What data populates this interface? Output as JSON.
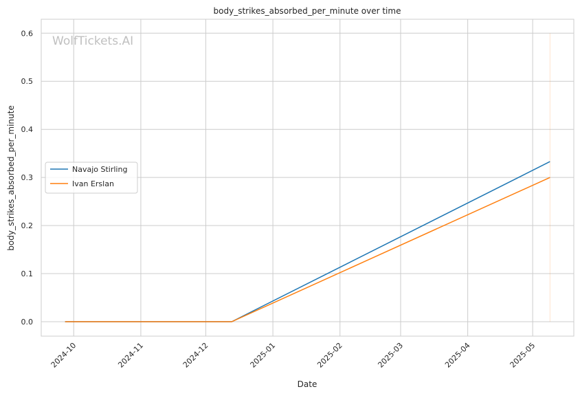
{
  "watermark": "WolfTickets.AI",
  "chart_data": {
    "type": "line",
    "title": "body_strikes_absorbed_per_minute over time",
    "xlabel": "Date",
    "ylabel": "body_strikes_absorbed_per_minute",
    "xlim": [
      "2024-09-16",
      "2025-05-20"
    ],
    "ylim": [
      -0.03,
      0.629
    ],
    "x_ticks": [
      "2024-10",
      "2024-11",
      "2024-12",
      "2025-01",
      "2025-02",
      "2025-03",
      "2025-04",
      "2025-05"
    ],
    "y_ticks": [
      0.0,
      0.1,
      0.2,
      0.3,
      0.4,
      0.5,
      0.6
    ],
    "grid": true,
    "legend_position": "center-left",
    "series": [
      {
        "name": "Navajo Stirling",
        "color": "#1f77b4",
        "points": [
          [
            "2024-09-27",
            0.0
          ],
          [
            "2024-12-13",
            0.0
          ],
          [
            "2025-05-09",
            0.333
          ]
        ]
      },
      {
        "name": "Ivan Erslan",
        "color": "#ff7f0e",
        "points": [
          [
            "2024-09-27",
            0.0
          ],
          [
            "2024-12-13",
            0.0
          ],
          [
            "2025-05-09",
            0.3
          ]
        ]
      }
    ],
    "vertical_marker": {
      "date": "2025-05-09",
      "from": 0.0,
      "to": 0.6,
      "color": "#ff7f0e"
    }
  }
}
